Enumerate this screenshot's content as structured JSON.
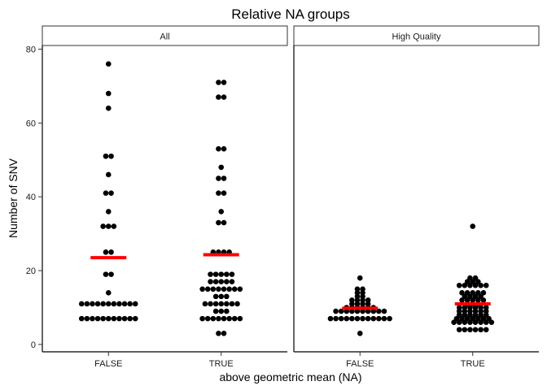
{
  "chart_data": {
    "type": "scatter",
    "subtype": "faceted-dotplot",
    "title": "Relative NA groups",
    "xlabel": "above geometric mean (NA)",
    "ylabel": "Number of SNV",
    "categories": [
      "FALSE",
      "TRUE"
    ],
    "ylim": [
      -2,
      81
    ],
    "yticks": [
      0,
      20,
      40,
      60,
      80
    ],
    "grid": false,
    "mean_color": "#ff0000",
    "point_color": "#000000",
    "facets": [
      {
        "label": "All",
        "groups": [
          {
            "category": "FALSE",
            "mean": 23.5,
            "values": [
              7,
              7,
              7,
              7,
              7,
              7,
              7,
              7,
              7,
              7,
              7,
              11,
              11,
              11,
              11,
              11,
              11,
              11,
              11,
              11,
              11,
              11,
              14,
              19,
              19,
              25,
              25,
              32,
              32,
              32,
              36,
              41,
              41,
              46,
              51,
              51,
              64,
              68,
              76
            ]
          },
          {
            "category": "TRUE",
            "mean": 24.3,
            "values": [
              3,
              3,
              7,
              7,
              7,
              7,
              7,
              7,
              7,
              7,
              9,
              9,
              9,
              11,
              11,
              11,
              11,
              11,
              11,
              11,
              13,
              13,
              13,
              15,
              15,
              15,
              15,
              15,
              15,
              15,
              15,
              17,
              17,
              17,
              17,
              17,
              19,
              19,
              19,
              19,
              19,
              25,
              25,
              25,
              25,
              33,
              33,
              36,
              41,
              41,
              45,
              45,
              48,
              53,
              53,
              67,
              67,
              71,
              71
            ]
          }
        ]
      },
      {
        "label": "High Quality",
        "groups": [
          {
            "category": "FALSE",
            "mean": 9.8,
            "values": [
              3,
              7,
              7,
              7,
              7,
              7,
              7,
              7,
              7,
              7,
              7,
              7,
              7,
              9,
              9,
              9,
              9,
              9,
              9,
              9,
              9,
              9,
              9,
              10,
              10,
              10,
              10,
              10,
              10,
              11,
              11,
              11,
              11,
              12,
              12,
              12,
              12,
              13,
              13,
              14,
              14,
              15,
              15,
              18
            ]
          },
          {
            "category": "TRUE",
            "mean": 11,
            "values": [
              4,
              4,
              4,
              4,
              4,
              4,
              6,
              6,
              6,
              6,
              6,
              6,
              6,
              6,
              7,
              7,
              7,
              7,
              7,
              7,
              7,
              8,
              8,
              8,
              8,
              8,
              8,
              9,
              9,
              9,
              9,
              9,
              9,
              10,
              10,
              10,
              10,
              10,
              10,
              11,
              11,
              11,
              12,
              12,
              12,
              12,
              12,
              13,
              13,
              13,
              13,
              14,
              14,
              14,
              14,
              14,
              16,
              16,
              16,
              16,
              16,
              16,
              17,
              17,
              17,
              18,
              18,
              32
            ]
          }
        ]
      }
    ]
  }
}
